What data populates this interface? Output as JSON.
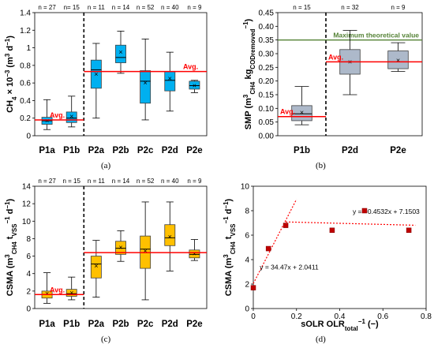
{
  "panels": {
    "a": {
      "caption": "(a)"
    },
    "b": {
      "caption": "(b)"
    },
    "c": {
      "caption": "(c)"
    },
    "d": {
      "caption": "(d)"
    }
  },
  "chart_data": [
    {
      "id": "a",
      "type": "box",
      "ylabel": "CH4 × 10^-3 (m3 d−1)",
      "ylabel_parts": [
        "CH",
        "4",
        " × 10",
        "−3",
        " (m",
        "3",
        " d",
        "−1",
        ")"
      ],
      "ylim": [
        0,
        1.4
      ],
      "yticks": [
        0,
        0.2,
        0.4,
        0.6,
        0.8,
        1,
        1.2,
        1.4
      ],
      "ytick_labels": [
        "0",
        "0.2",
        "0.4",
        "0.6",
        "0.8",
        "1",
        "1.2",
        "1.4"
      ],
      "categories": [
        "P1a",
        "P1b",
        "P2a",
        "P2b",
        "P2c",
        "P2d",
        "P2e"
      ],
      "counts": [
        "n = 27",
        "n= 15",
        "n = 11",
        "n = 14",
        "n = 52",
        "n = 40",
        "n = 9"
      ],
      "divider_after_index": 1,
      "box_color": "#00b0f0",
      "avg_color": "#ff0000",
      "boxes": [
        {
          "min": 0.07,
          "q1": 0.13,
          "median": 0.17,
          "q3": 0.21,
          "max": 0.41,
          "mean": 0.17
        },
        {
          "min": 0.1,
          "q1": 0.15,
          "median": 0.2,
          "q3": 0.27,
          "max": 0.45,
          "mean": 0.22
        },
        {
          "min": 0.2,
          "q1": 0.54,
          "median": 0.75,
          "q3": 0.86,
          "max": 1.05,
          "mean": 0.7
        },
        {
          "min": 0.71,
          "q1": 0.83,
          "median": 0.89,
          "q3": 1.03,
          "max": 1.19,
          "mean": 0.95
        },
        {
          "min": 0.18,
          "q1": 0.37,
          "median": 0.62,
          "q3": 0.74,
          "max": 1.1,
          "mean": 0.6
        },
        {
          "min": 0.28,
          "q1": 0.51,
          "median": 0.63,
          "q3": 0.73,
          "max": 0.95,
          "mean": 0.65
        },
        {
          "min": 0.49,
          "q1": 0.53,
          "median": 0.57,
          "q3": 0.62,
          "max": 0.63,
          "mean": 0.57
        }
      ],
      "averages": [
        {
          "value": 0.18,
          "from_index": 0,
          "to_index": 1,
          "label": "Avg."
        },
        {
          "value": 0.73,
          "from_index": 2,
          "to_index": 6,
          "label": "Avg."
        }
      ]
    },
    {
      "id": "b",
      "type": "box",
      "ylabel": "SMP (m3CH4 kgCODremoved−1)",
      "ylabel_parts": [
        "SMP (m",
        "3",
        "CH4",
        " kg",
        "CODremoved",
        "−1",
        ")"
      ],
      "ylim": [
        0,
        0.45
      ],
      "yticks": [
        0,
        0.05,
        0.1,
        0.15,
        0.2,
        0.25,
        0.3,
        0.35,
        0.4,
        0.45
      ],
      "ytick_labels": [
        "0.00",
        "0.05",
        "0.10",
        "0.15",
        "0.20",
        "0.25",
        "0.30",
        "0.35",
        "0.40",
        "0.45"
      ],
      "categories": [
        "P1b",
        "P2d",
        "P2e"
      ],
      "counts": [
        "n = 15",
        "n = 32",
        "n = 9"
      ],
      "divider_after_index": 0,
      "box_color": "#adb9ca",
      "avg_color": "#ff0000",
      "boxes": [
        {
          "min": 0.04,
          "q1": 0.055,
          "median": 0.08,
          "q3": 0.11,
          "max": 0.18,
          "mean": 0.085
        },
        {
          "min": 0.15,
          "q1": 0.225,
          "median": 0.27,
          "q3": 0.315,
          "max": 0.385,
          "mean": 0.27
        },
        {
          "min": 0.235,
          "q1": 0.245,
          "median": 0.27,
          "q3": 0.31,
          "max": 0.34,
          "mean": 0.275
        }
      ],
      "averages": [
        {
          "value": 0.07,
          "from_index": 0,
          "to_index": 0,
          "label": "Avg."
        },
        {
          "value": 0.27,
          "from_index": 1,
          "to_index": 2,
          "label": "Avg."
        }
      ],
      "reference_line": {
        "value": 0.35,
        "label": "Maximum theoretical value",
        "color": "#548235"
      }
    },
    {
      "id": "c",
      "type": "box",
      "ylabel": "CSMA (m3CH4 tVSS−1 d−1)",
      "ylabel_parts": [
        "CSMA (m",
        "3",
        "CH4",
        " t",
        "VSS",
        "−1",
        " d",
        "−1",
        ")"
      ],
      "ylim": [
        0,
        14
      ],
      "yticks": [
        0,
        2,
        4,
        6,
        8,
        10,
        12,
        14
      ],
      "ytick_labels": [
        "0",
        "2",
        "4",
        "6",
        "8",
        "10",
        "12",
        "14"
      ],
      "categories": [
        "P1a",
        "P1b",
        "P2a",
        "P2b",
        "P2c",
        "P2d",
        "P2e"
      ],
      "counts": [
        "n = 27",
        "n = 15",
        "n = 11",
        "n = 14",
        "n = 52",
        "n = 40",
        "n = 9"
      ],
      "divider_after_index": 1,
      "box_color": "#ffc000",
      "avg_color": "#ff0000",
      "boxes": [
        {
          "min": 0.6,
          "q1": 1.2,
          "median": 1.6,
          "q3": 2.0,
          "max": 4.1,
          "mean": 1.7
        },
        {
          "min": 1.0,
          "q1": 1.4,
          "median": 1.7,
          "q3": 2.2,
          "max": 3.6,
          "mean": 1.8
        },
        {
          "min": 1.3,
          "q1": 3.5,
          "median": 5.1,
          "q3": 6.0,
          "max": 7.8,
          "mean": 4.9
        },
        {
          "min": 5.4,
          "q1": 6.2,
          "median": 6.9,
          "q3": 7.7,
          "max": 8.9,
          "mean": 7.0
        },
        {
          "min": 1.0,
          "q1": 4.6,
          "median": 6.8,
          "q3": 8.3,
          "max": 12.2,
          "mean": 6.6
        },
        {
          "min": 4.3,
          "q1": 7.2,
          "median": 8.1,
          "q3": 9.6,
          "max": 12.2,
          "mean": 8.2
        },
        {
          "min": 5.5,
          "q1": 5.8,
          "median": 6.2,
          "q3": 6.7,
          "max": 7.9,
          "mean": 6.3
        }
      ],
      "averages": [
        {
          "value": 1.6,
          "from_index": 0,
          "to_index": 1,
          "label": "Avg."
        },
        {
          "value": 6.4,
          "from_index": 2,
          "to_index": 6,
          "label": ""
        }
      ]
    },
    {
      "id": "d",
      "type": "scatter",
      "ylabel": "CSMA (m3CH4 tVSS−1 d−1)",
      "ylabel_parts": [
        "CSMA (m",
        "3",
        "CH4",
        " t",
        "VSS",
        "−1",
        " d",
        "−1",
        ")"
      ],
      "xlabel": "sOLR OLRtotal−1 (−)",
      "xlabel_parts": [
        "sOLR OLR",
        "total",
        "−1",
        " (−)"
      ],
      "xlim": [
        0,
        0.8
      ],
      "ylim": [
        0,
        10
      ],
      "xticks": [
        0,
        0.2,
        0.4,
        0.6,
        0.8
      ],
      "xtick_labels": [
        "0",
        "0.2",
        "0.4",
        "0.6",
        "0.8"
      ],
      "yticks": [
        0,
        2,
        4,
        6,
        8,
        10
      ],
      "ytick_labels": [
        "0",
        "2",
        "4",
        "6",
        "8",
        "10"
      ],
      "marker_color": "#c00000",
      "trend_color": "#ff0000",
      "points": [
        {
          "x": 0.0,
          "y": 1.7
        },
        {
          "x": 0.07,
          "y": 4.9
        },
        {
          "x": 0.15,
          "y": 6.8
        },
        {
          "x": 0.365,
          "y": 6.4
        },
        {
          "x": 0.515,
          "y": 8.0
        },
        {
          "x": 0.72,
          "y": 6.4
        }
      ],
      "trendlines": [
        {
          "slope": 34.47,
          "intercept": 2.0411,
          "x_from": 0.0,
          "x_to": 0.2,
          "equation": "y = 34.47x + 2.0411"
        },
        {
          "slope": -0.4532,
          "intercept": 7.1503,
          "x_from": 0.15,
          "x_to": 0.75,
          "equation": "y = −0.4532x + 7.1503"
        }
      ]
    }
  ]
}
